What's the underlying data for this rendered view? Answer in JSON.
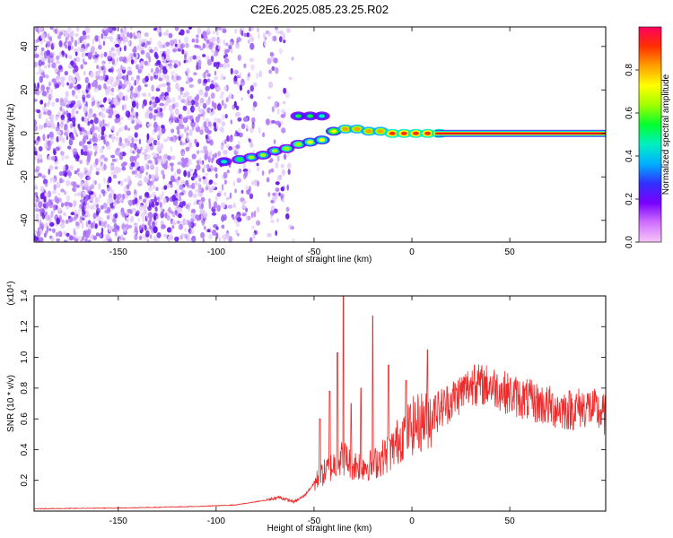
{
  "figure": {
    "title": "C2E6.2025.085.23.25.R02"
  },
  "colors": {
    "ridge": "#e8001a",
    "snr_line": "#ee2a2a",
    "noise_purple": "#6a1aef",
    "colorbar_stops": [
      "#f7c6f7",
      "#d070ff",
      "#7a00ff",
      "#3030ff",
      "#00b0ff",
      "#00f0c0",
      "#00ff30",
      "#a0ff00",
      "#ffff00",
      "#ffa000",
      "#ff3000",
      "#ff0060"
    ]
  },
  "chart_data": [
    {
      "id": "spectrogram",
      "type": "heatmap",
      "title": "",
      "xlabel": "Height of straight line (km)",
      "ylabel": "Frequency (Hz)",
      "xlim": [
        -193,
        99
      ],
      "ylim": [
        -50,
        49
      ],
      "xticks": [
        -150,
        -100,
        -50,
        0,
        50
      ],
      "yticks": [
        -40,
        -20,
        0,
        20,
        40
      ],
      "colorbar": {
        "label": "Normalized spectral amplitude",
        "range": [
          0,
          1
        ],
        "ticks": [
          0.0,
          0.2,
          0.4,
          0.6,
          0.8
        ]
      },
      "ridge_points": [
        {
          "x": -96,
          "y": -13,
          "a": 0.45
        },
        {
          "x": -88,
          "y": -12,
          "a": 0.55
        },
        {
          "x": -82,
          "y": -11,
          "a": 0.6
        },
        {
          "x": -76,
          "y": -10,
          "a": 0.6
        },
        {
          "x": -70,
          "y": -8,
          "a": 0.6
        },
        {
          "x": -64,
          "y": -7,
          "a": 0.65
        },
        {
          "x": -58,
          "y": -5,
          "a": 0.65
        },
        {
          "x": -52,
          "y": -4,
          "a": 0.7
        },
        {
          "x": -46,
          "y": -3,
          "a": 0.7
        },
        {
          "x": -40,
          "y": 1,
          "a": 0.75
        },
        {
          "x": -34,
          "y": 2,
          "a": 0.8
        },
        {
          "x": -28,
          "y": 2,
          "a": 0.8
        },
        {
          "x": -22,
          "y": 1,
          "a": 0.85
        },
        {
          "x": -16,
          "y": 1,
          "a": 0.85
        },
        {
          "x": -10,
          "y": 0,
          "a": 0.9
        },
        {
          "x": -4,
          "y": 0,
          "a": 0.9
        },
        {
          "x": 2,
          "y": 0,
          "a": 0.95
        },
        {
          "x": 8,
          "y": 0,
          "a": 0.95
        },
        {
          "x": 14,
          "y": 0,
          "a": 0.95
        }
      ],
      "side_branch": [
        {
          "x": -58,
          "y": 8,
          "a": 0.5
        },
        {
          "x": -52,
          "y": 8,
          "a": 0.5
        },
        {
          "x": -46,
          "y": 8,
          "a": 0.45
        }
      ],
      "continuous_line": {
        "x_start": 12,
        "x_end": 99,
        "y": 0
      }
    },
    {
      "id": "snr",
      "type": "line",
      "title": "",
      "xlabel": "Height of straight line (km)",
      "ylabel": "SNR (10 * v/v)",
      "scale_note": "(x10⁴)",
      "xlim": [
        -193,
        99
      ],
      "ylim": [
        0,
        1.4
      ],
      "xticks": [
        -150,
        -100,
        -50,
        0,
        50
      ],
      "yticks": [
        0.2,
        0.4,
        0.6,
        0.8,
        1.0,
        1.2,
        1.4
      ],
      "envelope": [
        {
          "x": -193,
          "y": 0.015
        },
        {
          "x": -150,
          "y": 0.02
        },
        {
          "x": -110,
          "y": 0.03
        },
        {
          "x": -90,
          "y": 0.04
        },
        {
          "x": -75,
          "y": 0.07
        },
        {
          "x": -68,
          "y": 0.09
        },
        {
          "x": -60,
          "y": 0.06
        },
        {
          "x": -55,
          "y": 0.1
        },
        {
          "x": -50,
          "y": 0.18
        },
        {
          "x": -45,
          "y": 0.25
        },
        {
          "x": -40,
          "y": 0.3
        },
        {
          "x": -35,
          "y": 0.35
        },
        {
          "x": -30,
          "y": 0.3
        },
        {
          "x": -25,
          "y": 0.3
        },
        {
          "x": -20,
          "y": 0.3
        },
        {
          "x": -15,
          "y": 0.35
        },
        {
          "x": -10,
          "y": 0.4
        },
        {
          "x": -5,
          "y": 0.5
        },
        {
          "x": 0,
          "y": 0.55
        },
        {
          "x": 10,
          "y": 0.62
        },
        {
          "x": 20,
          "y": 0.72
        },
        {
          "x": 30,
          "y": 0.82
        },
        {
          "x": 40,
          "y": 0.82
        },
        {
          "x": 50,
          "y": 0.76
        },
        {
          "x": 60,
          "y": 0.72
        },
        {
          "x": 70,
          "y": 0.68
        },
        {
          "x": 80,
          "y": 0.66
        },
        {
          "x": 90,
          "y": 0.68
        },
        {
          "x": 99,
          "y": 0.62
        }
      ],
      "spikes": [
        {
          "x": -47,
          "y": 0.6
        },
        {
          "x": -42,
          "y": 0.78
        },
        {
          "x": -38,
          "y": 1.03
        },
        {
          "x": -35,
          "y": 1.4
        },
        {
          "x": -31,
          "y": 0.7
        },
        {
          "x": -26,
          "y": 0.8
        },
        {
          "x": -20,
          "y": 1.27
        },
        {
          "x": -12,
          "y": 0.95
        },
        {
          "x": -3,
          "y": 0.85
        },
        {
          "x": 8,
          "y": 1.05
        },
        {
          "x": 12,
          "y": 0.75
        },
        {
          "x": 32,
          "y": 0.95
        }
      ]
    }
  ]
}
